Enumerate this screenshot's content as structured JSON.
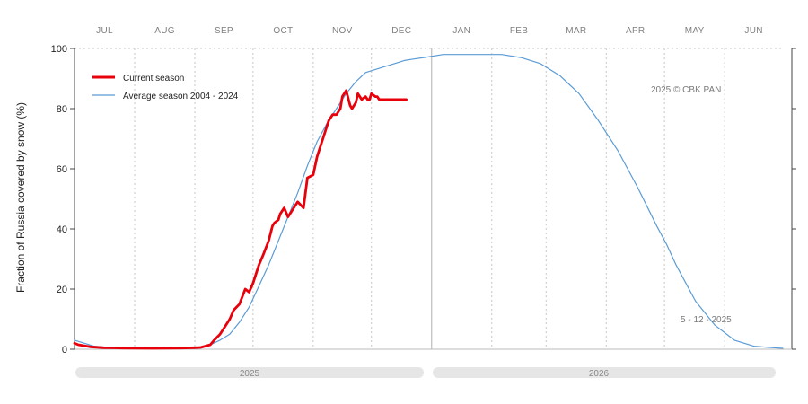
{
  "chart_data": {
    "type": "line",
    "ylabel": "Fraction of  Russia   covered by snow (%)",
    "ylim": [
      0,
      100
    ],
    "yticks": [
      0,
      20,
      40,
      60,
      80,
      100
    ],
    "grid": true,
    "legend_position": "top-left",
    "x_axis": {
      "start_month_index": 6,
      "months": [
        "JUL",
        "AUG",
        "SEP",
        "OCT",
        "NOV",
        "DEC",
        "JAN",
        "FEB",
        "MAR",
        "APR",
        "MAY",
        "JUN"
      ],
      "years": [
        "2025",
        "2026"
      ]
    },
    "annotations": {
      "copyright": "2025  © CBK PAN",
      "date": "5 - 12 - 2025"
    },
    "series": [
      {
        "name": "Current season",
        "color": "#e8000b",
        "x": [
          0,
          2,
          8,
          15,
          25,
          40,
          55,
          62,
          65,
          70,
          72,
          75,
          78,
          80,
          82,
          85,
          88,
          90,
          92,
          94,
          95,
          97,
          100,
          102,
          103,
          105,
          106,
          108,
          110,
          112,
          115,
          118,
          120,
          123,
          125,
          127,
          128,
          130,
          131,
          133,
          135,
          137,
          138,
          140,
          142,
          143,
          145,
          146,
          148,
          150,
          151,
          152,
          153,
          155,
          156,
          157,
          159,
          160,
          162,
          163,
          165,
          166,
          167,
          168,
          170,
          171
        ],
        "y": [
          2,
          1.5,
          0.8,
          0.5,
          0.4,
          0.3,
          0.4,
          0.5,
          0.6,
          1.5,
          3,
          5,
          8,
          10,
          13,
          15,
          20,
          19,
          22,
          26,
          28,
          31,
          36,
          41,
          42,
          43,
          45,
          47,
          44,
          46,
          49,
          47,
          57,
          58,
          64,
          68,
          70,
          74,
          76,
          78,
          78,
          80,
          84,
          86,
          81,
          80,
          82,
          85,
          83,
          84,
          83,
          83,
          85,
          84,
          84,
          83,
          83,
          83,
          83,
          83,
          83,
          83,
          83,
          83,
          83,
          83
        ],
        "values_note": ""
      },
      {
        "name": "Average season 2004 - 2024",
        "color": "#5b9bd5",
        "x": [
          0,
          10,
          20,
          30,
          40,
          50,
          60,
          65,
          70,
          75,
          80,
          85,
          90,
          95,
          100,
          105,
          110,
          115,
          120,
          125,
          130,
          135,
          140,
          145,
          150,
          155,
          160,
          165,
          170,
          175,
          180,
          190,
          200,
          210,
          220,
          230,
          240,
          250,
          260,
          270,
          280,
          290,
          300,
          305,
          310,
          315,
          320,
          330,
          340,
          350,
          360,
          365
        ],
        "y": [
          3,
          1,
          0.5,
          0.3,
          0.3,
          0.3,
          0.4,
          0.8,
          1.5,
          3,
          5,
          9,
          14,
          21,
          28,
          36,
          44,
          52,
          61,
          69,
          75,
          80,
          85,
          89,
          92,
          93,
          94,
          95,
          96,
          96.5,
          97,
          98,
          98,
          98,
          98,
          97,
          95,
          91,
          85,
          76,
          66,
          54,
          41,
          35,
          28,
          22,
          16,
          8,
          3,
          1,
          0.5,
          0.3
        ]
      }
    ]
  }
}
